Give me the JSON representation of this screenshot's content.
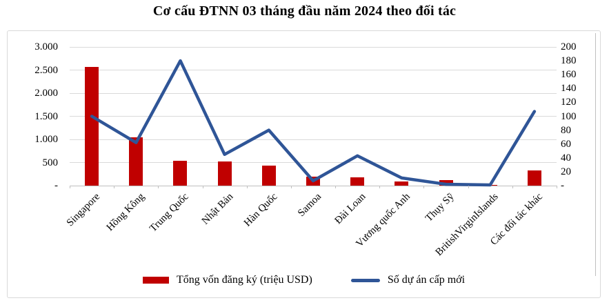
{
  "title": "Cơ cấu ĐTNN 03 tháng đầu năm 2024 theo đối tác",
  "chart_data": {
    "type": "combo bar+line, dual axis",
    "categories": [
      "Singapore",
      "Hồng Kông",
      "Trung Quốc",
      "Nhật Bản",
      "Hàn Quốc",
      "Samoa",
      "Đài Loan",
      "Vương quốc Anh",
      "Thụy Sỹ",
      "BritishVirginIslands",
      "Các đối tác khác"
    ],
    "series": [
      {
        "name": "Tổng vốn đăng ký (triệu USD)",
        "type": "bar",
        "axis": "left",
        "color": "#c00000",
        "values": [
          2570,
          1040,
          530,
          515,
          430,
          190,
          180,
          85,
          115,
          20,
          330
        ]
      },
      {
        "name": "Số dự án cấp mới",
        "type": "line",
        "axis": "right",
        "color": "#2f5597",
        "values": [
          100,
          62,
          180,
          45,
          80,
          7,
          43,
          11,
          2,
          1,
          107
        ]
      }
    ],
    "left_axis": {
      "min": 0,
      "max": 3000,
      "step": 500,
      "tick_labels": [
        "3.000",
        "2.500",
        "2.000",
        "1.500",
        "1.000",
        "500",
        "-"
      ]
    },
    "right_axis": {
      "min": 0,
      "max": 200,
      "step": 20,
      "tick_labels": [
        "200",
        "180",
        "160",
        "140",
        "120",
        "100",
        "80",
        "60",
        "40",
        "20",
        "-"
      ]
    },
    "grid": "horizontal gridlines at left-axis 500-unit intervals",
    "legend_position": "bottom"
  },
  "legend": {
    "items": [
      {
        "label": "Tổng vốn đăng ký (triệu USD)",
        "swatch": "bar",
        "color": "#c00000"
      },
      {
        "label": "Số dự án cấp mới",
        "swatch": "line",
        "color": "#2f5597"
      }
    ]
  },
  "colors": {
    "bar": "#c00000",
    "line": "#2f5597",
    "gridline": "#d9d9d9",
    "axis_line": "#bfbfbf",
    "text": "#000000",
    "chart_border": "#d9d9d9"
  }
}
